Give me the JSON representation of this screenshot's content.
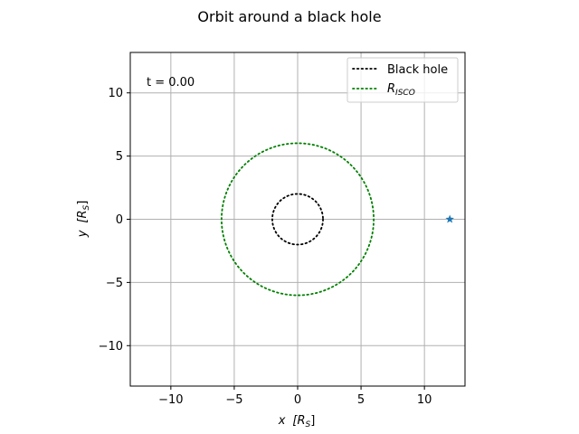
{
  "chart_data": {
    "type": "line",
    "title": "Orbit around a black hole",
    "xlabel": {
      "var": "x",
      "unit": "[R",
      "unit_sub": "S",
      "unit_close": "]"
    },
    "ylabel": {
      "var": "y",
      "unit": "[R",
      "unit_sub": "S",
      "unit_close": "]"
    },
    "xlim": [
      -13.2,
      13.2
    ],
    "ylim": [
      -13.2,
      13.2
    ],
    "xticks": [
      -10,
      -5,
      0,
      5,
      10
    ],
    "yticks": [
      -10,
      -5,
      0,
      5,
      10
    ],
    "xtick_labels": [
      "−10",
      "−5",
      "0",
      "5",
      "10"
    ],
    "ytick_labels": [
      "−10",
      "−5",
      "0",
      "5",
      "10"
    ],
    "grid": true,
    "annotation": "t = 0.00",
    "legend_position": "top-right",
    "series": [
      {
        "name": "Black hole",
        "kind": "circle",
        "radius": 2,
        "color": "#000000",
        "style": "dotted"
      },
      {
        "name_main": "R",
        "name_sub": "ISCO",
        "kind": "circle",
        "radius": 6,
        "color": "#008000",
        "style": "dotted"
      }
    ],
    "marker": {
      "x": 12,
      "y": 0,
      "shape": "star",
      "color": "#1f77b4"
    }
  }
}
